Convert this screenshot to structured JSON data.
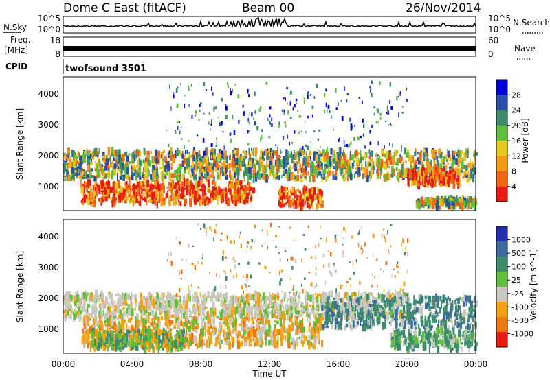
{
  "header": {
    "station": "Dome C East (fitACF)",
    "beam": "Beam 00",
    "date": "26/Nov/2014"
  },
  "noise_panel": {
    "left_label": "N.Sky",
    "right_label": "N.Search",
    "left_ticks": [
      "10^5",
      "10^0"
    ],
    "right_ticks": [
      "10^5",
      "10^0"
    ]
  },
  "freq_panel": {
    "left_label": "Freq.",
    "left_unit": "[MHz]",
    "right_label": "Nave",
    "left_ticks": [
      "18",
      "8"
    ],
    "right_ticks": [
      "60",
      "0"
    ]
  },
  "cpid_panel": {
    "label": "CPID",
    "program": "twofsound 3501"
  },
  "chart_data": [
    {
      "type": "heatmap",
      "parameter": "Power",
      "ylabel": "Slant Range [km]",
      "yticks": [
        "4000",
        "3000",
        "2000",
        "1000"
      ],
      "ylim": [
        180,
        4500
      ],
      "colorbar_label": "Power [dB]",
      "colorbar_ticks": [
        "28",
        "24",
        "20",
        "16",
        "12",
        "8",
        "4"
      ],
      "colorbar_colors": [
        "#0000dd",
        "#2a4faa",
        "#3c8c6e",
        "#5fbf3a",
        "#e6c81e",
        "#f59a14",
        "#f06414",
        "#e81c10"
      ],
      "regions_note": "echo bands",
      "bands": [
        {
          "t0": 0,
          "t1": 24,
          "r0": 1200,
          "r1": 2100,
          "level": "medium"
        },
        {
          "t0": 1,
          "t1": 11,
          "r0": 400,
          "r1": 1100,
          "level": "high"
        },
        {
          "t0": 12.5,
          "t1": 15,
          "r0": 300,
          "r1": 900,
          "level": "high"
        },
        {
          "t0": 20,
          "t1": 23,
          "r0": 1000,
          "r1": 1500,
          "level": "high"
        },
        {
          "t0": 20.5,
          "t1": 24,
          "r0": 300,
          "r1": 550,
          "level": "medium"
        }
      ]
    },
    {
      "type": "heatmap",
      "parameter": "Velocity",
      "ylabel": "Slant Range [km]",
      "yticks": [
        "4000",
        "3000",
        "2000",
        "1000"
      ],
      "ylim": [
        180,
        4500
      ],
      "colorbar_label": "Velocity [m s^-1]",
      "colorbar_ticks": [
        "1000",
        "500",
        "100",
        "25",
        "-25",
        "-100",
        "-500",
        "-1000"
      ],
      "colorbar_colors": [
        "#2030b0",
        "#3c6aa0",
        "#3c8c6e",
        "#5fbf3a",
        "#c8c8c0",
        "#f5a014",
        "#f07814",
        "#e81c10"
      ]
    }
  ],
  "x_axis": {
    "ticks": [
      "00:00",
      "04:00",
      "08:00",
      "12:00",
      "16:00",
      "20:00",
      "00:00"
    ],
    "label": "Time UT"
  }
}
